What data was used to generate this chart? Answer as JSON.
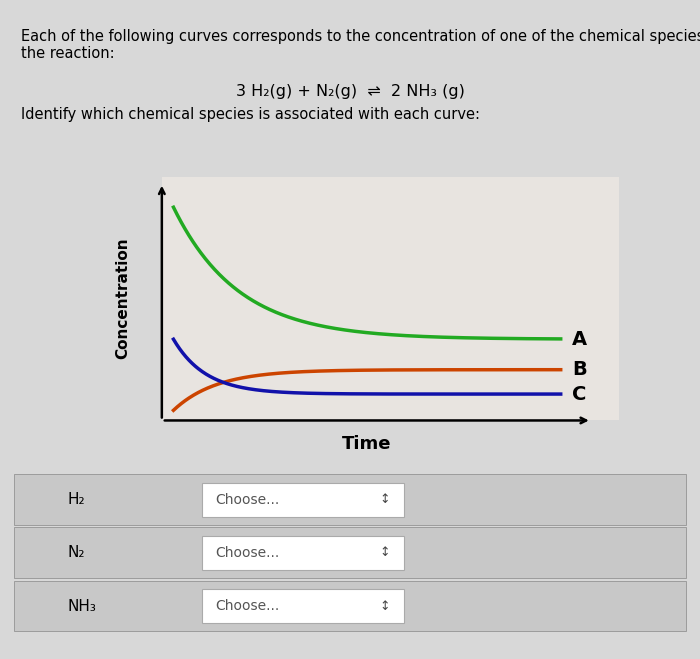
{
  "title_text": "Each of the following curves corresponds to the concentration of one of the chemical species in\nthe reaction:",
  "reaction_text": "3 H₂(g) + N₂(g)  ⇌  2 NH₃ (g)",
  "identify_text": "Identify which chemical species is associated with each curve:",
  "bg_color": "#d8d8d8",
  "plot_bg_color": "#e8e4e0",
  "curve_A_color": "#22aa22",
  "curve_B_color": "#cc4400",
  "curve_C_color": "#1111aa",
  "ylabel": "Concentration",
  "xlabel": "Time",
  "label_A": "A",
  "label_B": "B",
  "label_C": "C",
  "rows": [
    {
      "label": "H₂",
      "dropdown": "Choose..."
    },
    {
      "label": "N₂",
      "dropdown": "Choose..."
    },
    {
      "label": "NH₃",
      "dropdown": "Choose..."
    }
  ]
}
